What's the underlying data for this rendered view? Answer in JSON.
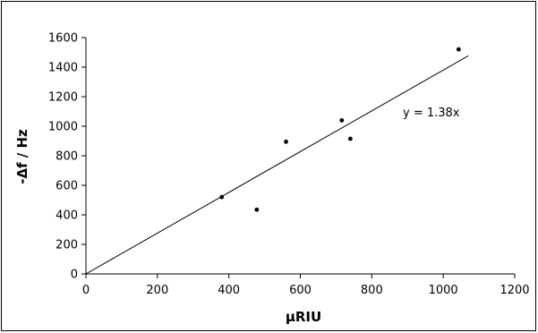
{
  "chart_data": {
    "type": "scatter",
    "xlabel": "µRIU",
    "ylabel": "-Δf / Hz",
    "xlim": [
      0,
      1200
    ],
    "ylim": [
      0,
      1600
    ],
    "x_ticks": [
      0,
      200,
      400,
      600,
      800,
      1000,
      1200
    ],
    "y_ticks": [
      0,
      200,
      400,
      600,
      800,
      1000,
      1200,
      1400,
      1600
    ],
    "x_tick_labels": [
      "0",
      "200",
      "400",
      "600",
      "800",
      "1000",
      "1200"
    ],
    "y_tick_labels": [
      "0",
      "200",
      "400",
      "600",
      "800",
      "1000",
      "1200",
      "1400",
      "1600"
    ],
    "grid": false,
    "legend": "none",
    "series": [
      {
        "points": [
          {
            "x": 380,
            "y": 520
          },
          {
            "x": 478,
            "y": 435
          },
          {
            "x": 560,
            "y": 895
          },
          {
            "x": 716,
            "y": 1040
          },
          {
            "x": 740,
            "y": 915
          },
          {
            "x": 1043,
            "y": 1520
          }
        ],
        "marker_color": "#000000"
      }
    ],
    "trendline": {
      "slope": 1.38,
      "intercept": 0,
      "x_range": [
        0,
        1070
      ],
      "color": "#000000"
    },
    "annotation": "y = 1.38x"
  }
}
